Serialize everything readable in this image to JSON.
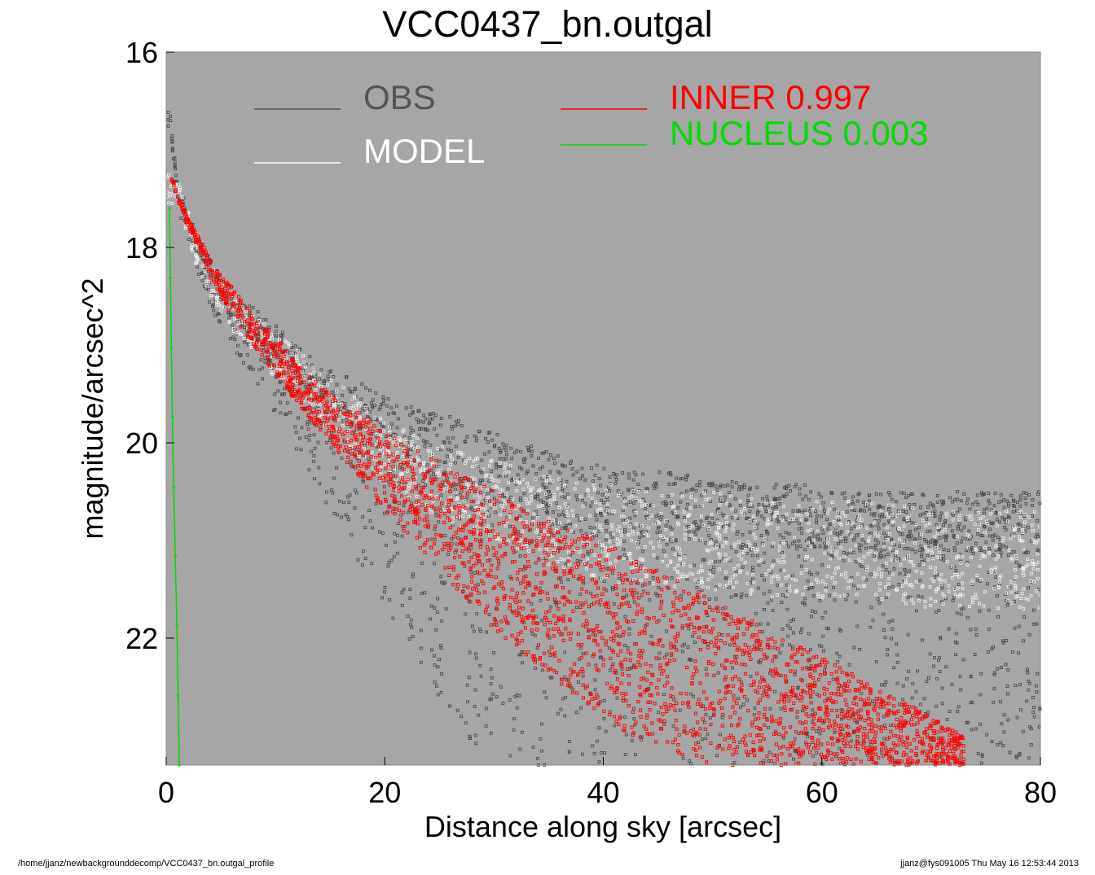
{
  "window": {
    "footer_left": "/home/jjanz/newbackgrounddecomp/VCC0437_bn.outgal_profile",
    "footer_right": "jjanz@fys091005  Thu May 16 12:53:44 2013"
  },
  "colors": {
    "plot_background": "#a6a6a6",
    "obs": "#444444",
    "model": "#f2f2f2",
    "inner": "#ff0000",
    "nucleus": "#00dd00"
  },
  "chart_data": {
    "type": "scatter",
    "title": "VCC0437_bn.outgal",
    "xlabel": "Distance along sky [arcsec]",
    "ylabel": "magnitude/arcsec^2",
    "xlim": [
      0,
      80
    ],
    "ylim": [
      23.3,
      16.0
    ],
    "y_inverted": true,
    "xticks": [
      0,
      20,
      40,
      60,
      80
    ],
    "yticks": [
      16,
      18,
      20,
      22
    ],
    "grid": false,
    "legend": {
      "placement": "top",
      "entries": [
        {
          "label": "OBS",
          "color": "#555555"
        },
        {
          "label": "MODEL",
          "color": "#ffffff"
        },
        {
          "label": "INNER  0.997",
          "color": "#ff0000"
        },
        {
          "label": "NUCLEUS  0.003",
          "color": "#00dd00"
        }
      ]
    },
    "series": [
      {
        "name": "OBS",
        "kind": "points",
        "color": "#444444",
        "x": [
          0.4,
          0.5,
          0.6,
          1,
          2,
          3,
          4,
          5,
          6,
          8,
          10,
          12,
          14,
          16,
          18,
          20,
          22,
          25,
          28,
          30,
          33,
          35,
          38,
          40,
          42,
          45,
          48,
          50,
          53,
          55,
          58,
          60,
          63,
          65,
          68,
          70,
          73,
          75,
          78,
          80
        ],
        "y": [
          16.7,
          16.8,
          17.0,
          17.4,
          17.8,
          18.1,
          18.3,
          18.5,
          18.7,
          18.9,
          19.1,
          19.3,
          19.5,
          19.7,
          19.9,
          20.0,
          20.2,
          20.4,
          20.5,
          20.6,
          20.7,
          20.8,
          20.9,
          20.9,
          21.0,
          21.0,
          21.0,
          21.0,
          21.1,
          21.1,
          21.1,
          21.1,
          21.1,
          21.1,
          21.1,
          21.1,
          21.1,
          21.1,
          21.1,
          21.1
        ],
        "scatter_min": [
          16.6,
          16.7,
          16.9,
          17.3,
          17.6,
          17.9,
          18.1,
          18.3,
          18.5,
          18.6,
          18.8,
          19.0,
          19.2,
          19.3,
          19.4,
          19.5,
          19.6,
          19.7,
          19.8,
          19.9,
          20.0,
          20.1,
          20.2,
          20.2,
          20.3,
          20.3,
          20.3,
          20.4,
          20.4,
          20.4,
          20.4,
          20.5,
          20.5,
          20.5,
          20.5,
          20.5,
          20.5,
          20.5,
          20.5,
          20.5
        ],
        "scatter_max": [
          16.8,
          16.9,
          17.1,
          17.6,
          18.0,
          18.3,
          18.6,
          18.8,
          19.0,
          19.4,
          19.7,
          20.1,
          20.5,
          20.9,
          21.3,
          21.7,
          22.1,
          22.6,
          23.1,
          23.3,
          23.3,
          23.3,
          23.3,
          23.3,
          23.3,
          23.3,
          23.3,
          23.3,
          23.3,
          23.3,
          23.3,
          23.3,
          23.3,
          23.3,
          23.3,
          23.3,
          23.3,
          23.3,
          23.3,
          23.3
        ]
      },
      {
        "name": "MODEL",
        "kind": "points",
        "color": "#f2f2f2",
        "x": [
          1,
          3,
          5,
          8,
          10,
          12,
          15,
          18,
          20,
          25,
          30,
          35,
          40,
          45,
          50,
          55,
          60,
          65,
          70,
          75,
          80
        ],
        "y": [
          17.4,
          18.1,
          18.5,
          18.9,
          19.1,
          19.3,
          19.6,
          19.9,
          20.1,
          20.4,
          20.6,
          20.8,
          20.9,
          21.0,
          21.0,
          21.1,
          21.1,
          21.1,
          21.2,
          21.2,
          21.2
        ]
      },
      {
        "name": "INNER  0.997",
        "kind": "band",
        "color": "#ff0000",
        "x": [
          0.5,
          1,
          2,
          3,
          4,
          5,
          6,
          8,
          10,
          12,
          15,
          18,
          20,
          25,
          30,
          35,
          40,
          45,
          47,
          50,
          55,
          60,
          65,
          70,
          73
        ],
        "y_upper": [
          17.3,
          17.4,
          17.7,
          17.9,
          18.1,
          18.3,
          18.4,
          18.7,
          18.9,
          19.2,
          19.5,
          19.7,
          19.9,
          20.2,
          20.5,
          20.8,
          21.0,
          21.3,
          21.4,
          21.6,
          21.9,
          22.2,
          22.5,
          22.8,
          23.0
        ],
        "y_lower": [
          17.3,
          17.5,
          17.8,
          18.0,
          18.3,
          18.5,
          18.7,
          19.0,
          19.3,
          19.6,
          20.0,
          20.4,
          20.7,
          21.3,
          21.9,
          22.4,
          22.8,
          23.2,
          23.3,
          23.3,
          23.3,
          23.3,
          23.3,
          23.3,
          23.3
        ]
      },
      {
        "name": "NUCLEUS  0.003",
        "kind": "line",
        "color": "#00dd00",
        "x": [
          0.3,
          0.6,
          1.0,
          1.2
        ],
        "y": [
          17.6,
          20.0,
          22.0,
          23.3
        ]
      }
    ]
  }
}
